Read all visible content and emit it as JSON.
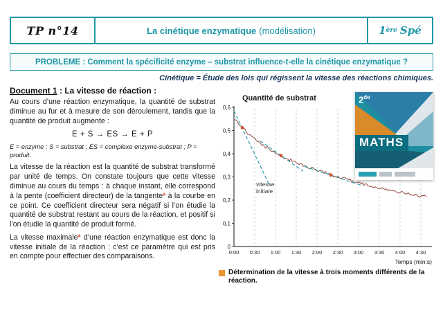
{
  "theme": {
    "teal": "#1e97a5",
    "navy": "#17365d",
    "star": "#e0492f",
    "orange": "#e8952f",
    "curve": "#8e4b3e",
    "tangent": "#2aa0b2",
    "dot": "#d2502a",
    "ink": "#1a1a1a"
  },
  "header": {
    "tp": "TP n°14",
    "title_main": "La cinétique enzymatique",
    "title_paren": "(modélisation)",
    "level_num": "1",
    "level_sup": "ère",
    "level_word": "Spé"
  },
  "problem": "PROBLEME : Comment la spécificité enzyme – substrat influence-t-elle la cinétique enzymatique ?",
  "subtitle": "Cinétique = Étude des lois qui régissent la vitesse des réactions chimiques.",
  "document1": {
    "label": "Document 1",
    "rest": " : La vitesse de réaction :"
  },
  "left_column": {
    "para1": "Au cours d’une réaction enzymatique, la quantité de substrat diminue au fur et à mesure de son déroulement, tandis que la quantité de produit augmente :",
    "equation": "E + S → ES → E + P",
    "eq_legend": "E = enzyme ; S = substrat ; ES = complexe enzyme-substrat ; P = produit.",
    "para2_part1": "La vitesse de la réaction est la quantité de substrat transformé par unité de temps. On constate toujours que cette vitesse diminue au cours du temps : à chaque instant, elle correspond à la pente (coefficient directeur) de la tangente",
    "para2_star": "*",
    "para2_part2": " à la courbe en ce point. Ce coefficient directeur sera négatif si l’on étudie la quantité de substrat restant au cours de la réaction, et positif si l’on étudie la quantité de produit formé.",
    "para3_part1": "La vitesse maximale",
    "para3_star": "*",
    "para3_part2": " d’une réaction enzymatique est donc la vitesse initiale de la réaction : c’est ce paramètre qui est pris en compte pour effectuer des comparaisons."
  },
  "book": {
    "grade_num": "2",
    "grade_sup": "de",
    "title": "MATHS"
  },
  "chart_data": {
    "type": "line",
    "title": "Quantité de substrat",
    "xlabel": "Temps (min:s)",
    "x_ticks": [
      "0:00",
      "0:30",
      "1:00",
      "1:30",
      "2:00",
      "2:30",
      "3:00",
      "3:30",
      "4:00",
      "4:30"
    ],
    "x_tick_step": 30,
    "x_max": 282,
    "y_ticks": [
      "0",
      "0,1",
      "0,2",
      "0,3",
      "0,4",
      "0,5",
      "0,6"
    ],
    "y_tick_step": 0.1,
    "y_max": 0.6,
    "ylim": [
      0,
      0.6
    ],
    "grid": "vertical-dashed",
    "curve_end": 278,
    "curve_keypoints": [
      [
        0,
        0.555
      ],
      [
        10,
        0.52
      ],
      [
        20,
        0.49
      ],
      [
        30,
        0.462
      ],
      [
        40,
        0.44
      ],
      [
        50,
        0.422
      ],
      [
        60,
        0.405
      ],
      [
        70,
        0.39
      ],
      [
        80,
        0.375
      ],
      [
        90,
        0.362
      ],
      [
        100,
        0.35
      ],
      [
        110,
        0.34
      ],
      [
        120,
        0.33
      ],
      [
        130,
        0.32
      ],
      [
        140,
        0.308
      ],
      [
        150,
        0.3
      ],
      [
        160,
        0.292
      ],
      [
        170,
        0.284
      ],
      [
        180,
        0.275
      ],
      [
        190,
        0.268
      ],
      [
        200,
        0.26
      ],
      [
        210,
        0.252
      ],
      [
        220,
        0.246
      ],
      [
        230,
        0.24
      ],
      [
        240,
        0.234
      ],
      [
        250,
        0.228
      ],
      [
        260,
        0.222
      ],
      [
        270,
        0.217
      ],
      [
        278,
        0.213
      ]
    ],
    "tangents": [
      {
        "line": [
          0,
          0.585,
          52,
          0.26
        ],
        "dot": [
          12,
          0.512
        ]
      },
      {
        "line": [
          38,
          0.455,
          100,
          0.325
        ],
        "dot": [
          68,
          0.392
        ]
      },
      {
        "line": [
          102,
          0.345,
          186,
          0.262
        ],
        "dot": [
          140,
          0.308
        ]
      }
    ],
    "annotation": {
      "lines": [
        "vitesse",
        "initiale"
      ],
      "pos": [
        32,
        0.26
      ]
    },
    "caption": "Détermination de la vitesse à trois moments différents de la réaction."
  }
}
